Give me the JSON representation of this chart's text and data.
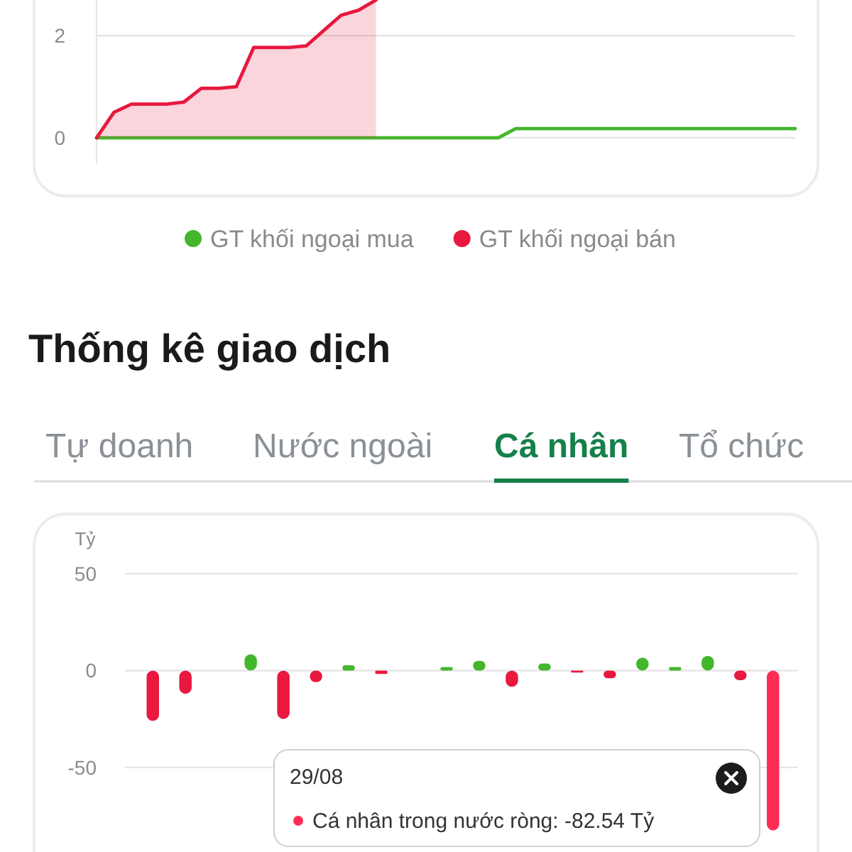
{
  "chart_data": [
    {
      "type": "line",
      "categories": [
        null,
        null,
        null,
        null,
        null,
        null,
        null,
        null,
        null,
        null,
        null,
        null,
        null,
        null,
        null,
        null,
        null,
        null,
        null,
        null,
        null,
        null,
        null,
        null,
        null,
        null,
        null,
        null,
        null,
        null,
        null,
        null,
        null,
        null,
        null,
        null,
        null,
        null,
        null,
        null,
        null
      ],
      "series": [
        {
          "name": "GT khối ngoại mua",
          "color": "#44b62c",
          "type": "line",
          "values": [
            0,
            0,
            0,
            0,
            0,
            0,
            0,
            0,
            0,
            0,
            0,
            0,
            0,
            0,
            0,
            0,
            0,
            0,
            0,
            0,
            0,
            0,
            0,
            0,
            0.18,
            0.18,
            0.18,
            0.18,
            0.18,
            0.18,
            0.18,
            0.18,
            0.18,
            0.18,
            0.18,
            0.18,
            0.18,
            0.18,
            0.18,
            0.18,
            0.18
          ]
        },
        {
          "name": "GT khối ngoại bán",
          "color": "#e8183f",
          "type": "area",
          "values": [
            0,
            0.5,
            0.66,
            0.66,
            0.66,
            0.7,
            0.97,
            0.97,
            1.0,
            1.77,
            1.77,
            1.77,
            1.8,
            2.1,
            2.4,
            2.5,
            2.7,
            null,
            null,
            null,
            null,
            null,
            null,
            null,
            null,
            null,
            null,
            null,
            null,
            null,
            null,
            null,
            null,
            null,
            null,
            null,
            null,
            null,
            null,
            null,
            null
          ]
        }
      ],
      "ylim": [
        -0.5,
        2.7
      ],
      "yticks": [
        0,
        2
      ],
      "grid": "y",
      "legend": "bottom",
      "tick_labels": "y"
    },
    {
      "type": "bar",
      "title": "Thống kê giao dịch",
      "ylabel": "Tỷ",
      "categories": [
        null,
        null,
        null,
        null,
        null,
        null,
        null,
        null,
        null,
        null,
        null,
        null,
        null,
        null,
        null,
        null,
        null,
        null,
        null,
        null
      ],
      "values": [
        -26,
        -12,
        null,
        8.4,
        -25,
        -6,
        2.7,
        -1.8,
        null,
        1.8,
        5,
        -8.4,
        3.6,
        -1,
        -4,
        6.7,
        1.8,
        7.6,
        -5,
        -82.54
      ],
      "colors": [
        "#e8183f",
        "#e8183f",
        null,
        "#44b62c",
        "#e8183f",
        "#e8183f",
        "#44b62c",
        "#e8183f",
        null,
        "#44b62c",
        "#44b62c",
        "#e8183f",
        "#44b62c",
        "#e8183f",
        "#e8183f",
        "#44b62c",
        "#44b62c",
        "#44b62c",
        "#e8183f",
        "#ff2d55"
      ],
      "ylim": [
        -90,
        50
      ],
      "yticks": [
        50,
        0,
        -50
      ],
      "grid": "y",
      "tick_labels": "y",
      "annotations": [
        "Tự doanh",
        "Nước ngoài",
        "Cá nhân",
        "Tổ chức",
        "29/08",
        "Cá nhân trong nước ròng: -82.54 Tỷ"
      ]
    }
  ]
}
